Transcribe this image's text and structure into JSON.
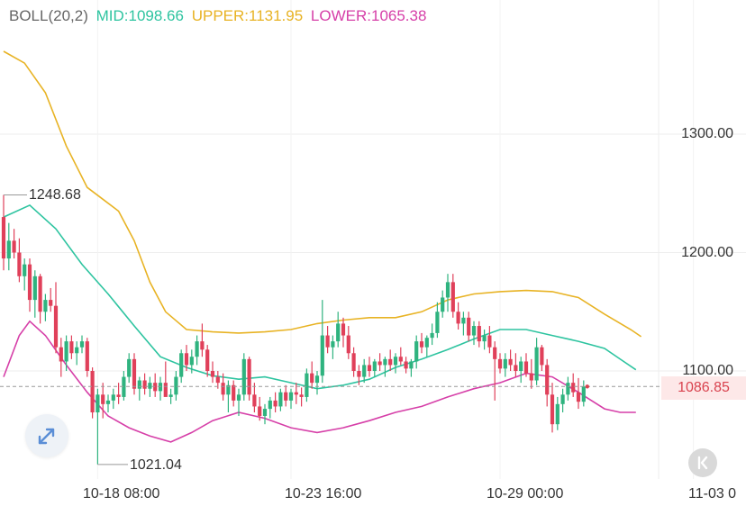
{
  "legend": {
    "name": "BOLL(20,2)",
    "mid": "MID:1098.66",
    "upper": "UPPER:1131.95",
    "lower": "LOWER:1065.38",
    "colors": {
      "name": "#666666",
      "mid": "#2ec4a0",
      "upper": "#e8b324",
      "lower": "#d63fa8"
    }
  },
  "price_axis": [
    "1300.00",
    "1200.00",
    "1100.00"
  ],
  "last_price": "1086.85",
  "time_axis": [
    "10-18 08:00",
    "10-23 16:00",
    "10-29 00:00",
    "11-03 0"
  ],
  "annotations": {
    "high": "1248.68",
    "low": "1021.04"
  },
  "icons": {
    "expand": "expand-arrows-icon",
    "reset": "reset-arrow-icon"
  },
  "colors": {
    "up": "#2fb37f",
    "down": "#e0405a",
    "grid": "#eeeeee"
  },
  "chart_data": {
    "type": "candlestick",
    "ylim": [
      970,
      1410
    ],
    "x_ticks": [
      {
        "index": 18,
        "label": "10-18 08:00"
      },
      {
        "index": 55,
        "label": "10-23 16:00"
      },
      {
        "index": 95,
        "label": "10-29 00:00"
      },
      {
        "index": 132,
        "label": "11-03 0"
      }
    ],
    "candles": [
      [
        1230,
        1248.68,
        1185,
        1195
      ],
      [
        1195,
        1225,
        1185,
        1210
      ],
      [
        1210,
        1220,
        1195,
        1200
      ],
      [
        1200,
        1212,
        1175,
        1180
      ],
      [
        1180,
        1195,
        1168,
        1190
      ],
      [
        1190,
        1195,
        1150,
        1160
      ],
      [
        1160,
        1185,
        1145,
        1180
      ],
      [
        1180,
        1182,
        1140,
        1150
      ],
      [
        1150,
        1165,
        1142,
        1160
      ],
      [
        1160,
        1170,
        1150,
        1155
      ],
      [
        1155,
        1175,
        1115,
        1120
      ],
      [
        1120,
        1128,
        1095,
        1108
      ],
      [
        1108,
        1130,
        1100,
        1125
      ],
      [
        1125,
        1130,
        1110,
        1115
      ],
      [
        1115,
        1125,
        1105,
        1120
      ],
      [
        1120,
        1130,
        1115,
        1125
      ],
      [
        1125,
        1128,
        1095,
        1100
      ],
      [
        1100,
        1103,
        1060,
        1065
      ],
      [
        1065,
        1085,
        1021.04,
        1080
      ],
      [
        1080,
        1090,
        1060,
        1072
      ],
      [
        1072,
        1080,
        1065,
        1075
      ],
      [
        1075,
        1085,
        1068,
        1080
      ],
      [
        1080,
        1090,
        1072,
        1078
      ],
      [
        1078,
        1100,
        1075,
        1095
      ],
      [
        1095,
        1115,
        1090,
        1110
      ],
      [
        1110,
        1115,
        1080,
        1085
      ],
      [
        1085,
        1095,
        1075,
        1092
      ],
      [
        1092,
        1098,
        1080,
        1085
      ],
      [
        1085,
        1095,
        1078,
        1090
      ],
      [
        1090,
        1098,
        1078,
        1083
      ],
      [
        1083,
        1095,
        1075,
        1090
      ],
      [
        1090,
        1108,
        1080,
        1078
      ],
      [
        1078,
        1085,
        1072,
        1080
      ],
      [
        1080,
        1100,
        1075,
        1095
      ],
      [
        1095,
        1118,
        1090,
        1115
      ],
      [
        1115,
        1122,
        1100,
        1105
      ],
      [
        1105,
        1118,
        1098,
        1112
      ],
      [
        1112,
        1130,
        1105,
        1125
      ],
      [
        1125,
        1140,
        1112,
        1118
      ],
      [
        1118,
        1122,
        1095,
        1100
      ],
      [
        1100,
        1108,
        1090,
        1095
      ],
      [
        1095,
        1100,
        1085,
        1090
      ],
      [
        1090,
        1098,
        1075,
        1080
      ],
      [
        1080,
        1092,
        1065,
        1088
      ],
      [
        1088,
        1092,
        1070,
        1075
      ],
      [
        1075,
        1085,
        1062,
        1080
      ],
      [
        1080,
        1115,
        1075,
        1110
      ],
      [
        1110,
        1112,
        1075,
        1080
      ],
      [
        1080,
        1090,
        1065,
        1070
      ],
      [
        1070,
        1078,
        1058,
        1062
      ],
      [
        1062,
        1072,
        1055,
        1068
      ],
      [
        1068,
        1078,
        1060,
        1075
      ],
      [
        1075,
        1082,
        1065,
        1070
      ],
      [
        1070,
        1085,
        1066,
        1082
      ],
      [
        1082,
        1088,
        1070,
        1075
      ],
      [
        1075,
        1085,
        1068,
        1082
      ],
      [
        1082,
        1090,
        1072,
        1080
      ],
      [
        1080,
        1086,
        1070,
        1078
      ],
      [
        1078,
        1102,
        1074,
        1098
      ],
      [
        1098,
        1108,
        1085,
        1090
      ],
      [
        1090,
        1100,
        1080,
        1096
      ],
      [
        1096,
        1160,
        1090,
        1130
      ],
      [
        1130,
        1138,
        1115,
        1120
      ],
      [
        1120,
        1130,
        1110,
        1125
      ],
      [
        1125,
        1150,
        1120,
        1140
      ],
      [
        1140,
        1145,
        1120,
        1130
      ],
      [
        1130,
        1138,
        1110,
        1115
      ],
      [
        1115,
        1120,
        1095,
        1100
      ],
      [
        1100,
        1105,
        1088,
        1095
      ],
      [
        1095,
        1110,
        1090,
        1105
      ],
      [
        1105,
        1112,
        1095,
        1100
      ],
      [
        1100,
        1110,
        1095,
        1108
      ],
      [
        1108,
        1115,
        1100,
        1105
      ],
      [
        1105,
        1112,
        1095,
        1110
      ],
      [
        1110,
        1118,
        1100,
        1105
      ],
      [
        1105,
        1115,
        1098,
        1112
      ],
      [
        1112,
        1120,
        1105,
        1108
      ],
      [
        1108,
        1112,
        1098,
        1102
      ],
      [
        1102,
        1110,
        1095,
        1108
      ],
      [
        1108,
        1130,
        1102,
        1125
      ],
      [
        1125,
        1132,
        1115,
        1120
      ],
      [
        1120,
        1130,
        1112,
        1128
      ],
      [
        1128,
        1140,
        1122,
        1132
      ],
      [
        1132,
        1158,
        1128,
        1150
      ],
      [
        1150,
        1168,
        1145,
        1162
      ],
      [
        1162,
        1182,
        1150,
        1175
      ],
      [
        1175,
        1182,
        1145,
        1150
      ],
      [
        1150,
        1158,
        1135,
        1140
      ],
      [
        1140,
        1150,
        1130,
        1145
      ],
      [
        1145,
        1150,
        1125,
        1130
      ],
      [
        1130,
        1142,
        1122,
        1138
      ],
      [
        1138,
        1142,
        1120,
        1125
      ],
      [
        1125,
        1135,
        1118,
        1130
      ],
      [
        1130,
        1138,
        1115,
        1120
      ],
      [
        1120,
        1125,
        1075,
        1110
      ],
      [
        1110,
        1115,
        1098,
        1102
      ],
      [
        1102,
        1115,
        1095,
        1110
      ],
      [
        1110,
        1118,
        1100,
        1105
      ],
      [
        1105,
        1115,
        1095,
        1100
      ],
      [
        1100,
        1112,
        1090,
        1108
      ],
      [
        1108,
        1115,
        1095,
        1098
      ],
      [
        1098,
        1110,
        1085,
        1092
      ],
      [
        1092,
        1128,
        1088,
        1120
      ],
      [
        1120,
        1122,
        1100,
        1105
      ],
      [
        1105,
        1110,
        1070,
        1080
      ],
      [
        1080,
        1090,
        1048,
        1055
      ],
      [
        1055,
        1078,
        1050,
        1072
      ],
      [
        1072,
        1085,
        1065,
        1080
      ],
      [
        1080,
        1095,
        1075,
        1090
      ],
      [
        1090,
        1098,
        1078,
        1082
      ],
      [
        1082,
        1094,
        1068,
        1074
      ],
      [
        1074,
        1092,
        1070,
        1086.85
      ]
    ],
    "mid": [
      [
        0,
        1230
      ],
      [
        5,
        1240
      ],
      [
        10,
        1220
      ],
      [
        15,
        1190
      ],
      [
        20,
        1165
      ],
      [
        25,
        1138
      ],
      [
        30,
        1112
      ],
      [
        35,
        1103
      ],
      [
        40,
        1096
      ],
      [
        45,
        1093
      ],
      [
        50,
        1095
      ],
      [
        55,
        1090
      ],
      [
        60,
        1085
      ],
      [
        65,
        1088
      ],
      [
        70,
        1093
      ],
      [
        75,
        1103
      ],
      [
        80,
        1110
      ],
      [
        85,
        1118
      ],
      [
        90,
        1127
      ],
      [
        95,
        1135
      ],
      [
        100,
        1135
      ],
      [
        105,
        1130
      ],
      [
        110,
        1125
      ],
      [
        115,
        1119
      ],
      [
        118,
        1110
      ],
      [
        121,
        1101
      ]
    ],
    "upper": [
      [
        0,
        1370
      ],
      [
        4,
        1360
      ],
      [
        8,
        1335
      ],
      [
        12,
        1290
      ],
      [
        16,
        1255
      ],
      [
        19,
        1245
      ],
      [
        22,
        1235
      ],
      [
        25,
        1210
      ],
      [
        28,
        1175
      ],
      [
        31,
        1150
      ],
      [
        35,
        1135
      ],
      [
        40,
        1133
      ],
      [
        45,
        1132
      ],
      [
        50,
        1133
      ],
      [
        55,
        1135
      ],
      [
        60,
        1140
      ],
      [
        65,
        1143
      ],
      [
        70,
        1145
      ],
      [
        75,
        1145
      ],
      [
        80,
        1150
      ],
      [
        85,
        1160
      ],
      [
        90,
        1165
      ],
      [
        95,
        1167
      ],
      [
        100,
        1168
      ],
      [
        105,
        1167
      ],
      [
        110,
        1162
      ],
      [
        115,
        1148
      ],
      [
        120,
        1135
      ],
      [
        122,
        1129
      ]
    ],
    "lower": [
      [
        0,
        1095
      ],
      [
        3,
        1130
      ],
      [
        5,
        1142
      ],
      [
        8,
        1130
      ],
      [
        12,
        1105
      ],
      [
        16,
        1082
      ],
      [
        20,
        1062
      ],
      [
        24,
        1052
      ],
      [
        28,
        1045
      ],
      [
        32,
        1040
      ],
      [
        36,
        1048
      ],
      [
        40,
        1058
      ],
      [
        45,
        1065
      ],
      [
        50,
        1060
      ],
      [
        55,
        1052
      ],
      [
        60,
        1048
      ],
      [
        65,
        1052
      ],
      [
        70,
        1058
      ],
      [
        75,
        1065
      ],
      [
        80,
        1070
      ],
      [
        85,
        1078
      ],
      [
        90,
        1085
      ],
      [
        95,
        1090
      ],
      [
        100,
        1098
      ],
      [
        105,
        1095
      ],
      [
        110,
        1082
      ],
      [
        115,
        1068
      ],
      [
        118,
        1065
      ],
      [
        121,
        1065
      ]
    ]
  }
}
